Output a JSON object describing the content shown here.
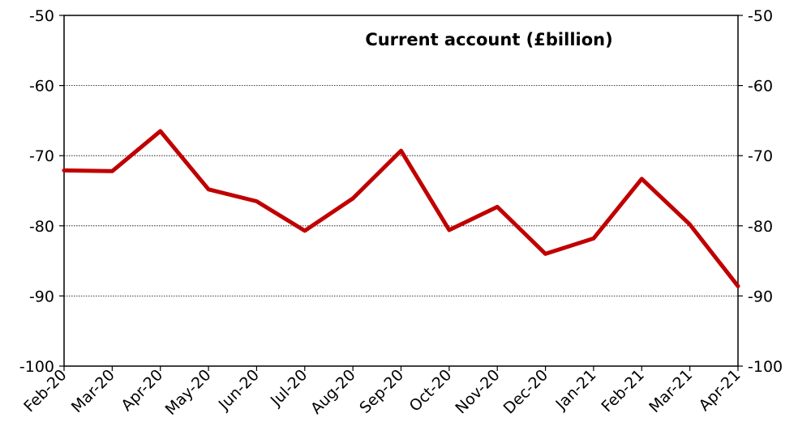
{
  "chart_data": {
    "type": "line",
    "title": "Current account (£billion)",
    "xlabel": "",
    "ylabel": "",
    "categories": [
      "Feb-20",
      "Mar-20",
      "Apr-20",
      "May-20",
      "Jun-20",
      "Jul-20",
      "Aug-20",
      "Sep-20",
      "Oct-20",
      "Nov-20",
      "Dec-20",
      "Jan-21",
      "Feb-21",
      "Mar-21",
      "Apr-21"
    ],
    "series": [
      {
        "values": [
          -72.1,
          -72.2,
          -66.5,
          -74.8,
          -76.5,
          -80.7,
          -76.1,
          -69.3,
          -80.6,
          -77.3,
          -84.0,
          -81.8,
          -73.3,
          -79.8,
          -88.6
        ],
        "color": "#c00000"
      }
    ],
    "ylim": [
      -100,
      -50
    ],
    "yticks": [
      "-50",
      "-60",
      "-70",
      "-80",
      "-90",
      "-100"
    ],
    "grid": "horizontal dotted",
    "legend": "none",
    "secondary_axis": "right, mirrors left"
  }
}
